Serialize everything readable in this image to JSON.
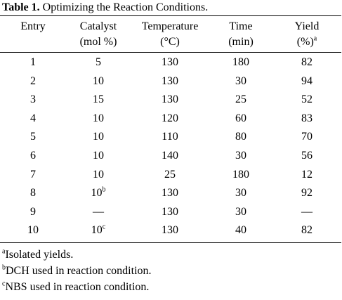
{
  "caption": {
    "label": "Table 1.",
    "text": " Optimizing the Reaction Conditions."
  },
  "headers": [
    {
      "line1": "Entry",
      "line2": "",
      "sup": ""
    },
    {
      "line1": "Catalyst",
      "line2": "(mol %)",
      "sup": ""
    },
    {
      "line1": "Temperature",
      "line2": "(°C)",
      "sup": ""
    },
    {
      "line1": "Time",
      "line2": "(min)",
      "sup": ""
    },
    {
      "line1": "Yield",
      "line2": "(%)",
      "sup": "a"
    }
  ],
  "rows": [
    [
      {
        "v": "1"
      },
      {
        "v": "5"
      },
      {
        "v": "130"
      },
      {
        "v": "180"
      },
      {
        "v": "82"
      }
    ],
    [
      {
        "v": "2"
      },
      {
        "v": "10"
      },
      {
        "v": "130"
      },
      {
        "v": "30"
      },
      {
        "v": "94"
      }
    ],
    [
      {
        "v": "3"
      },
      {
        "v": "15"
      },
      {
        "v": "130"
      },
      {
        "v": "25"
      },
      {
        "v": "52"
      }
    ],
    [
      {
        "v": "4"
      },
      {
        "v": "10"
      },
      {
        "v": "120"
      },
      {
        "v": "60"
      },
      {
        "v": "83"
      }
    ],
    [
      {
        "v": "5"
      },
      {
        "v": "10"
      },
      {
        "v": "110"
      },
      {
        "v": "80"
      },
      {
        "v": "70"
      }
    ],
    [
      {
        "v": "6"
      },
      {
        "v": "10"
      },
      {
        "v": "140"
      },
      {
        "v": "30"
      },
      {
        "v": "56"
      }
    ],
    [
      {
        "v": "7"
      },
      {
        "v": "10"
      },
      {
        "v": "25"
      },
      {
        "v": "180"
      },
      {
        "v": "12"
      }
    ],
    [
      {
        "v": "8"
      },
      {
        "v": "10",
        "sup": "b"
      },
      {
        "v": "130"
      },
      {
        "v": "30"
      },
      {
        "v": "92"
      }
    ],
    [
      {
        "v": "9"
      },
      {
        "v": "—"
      },
      {
        "v": "130"
      },
      {
        "v": "30"
      },
      {
        "v": "—"
      }
    ],
    [
      {
        "v": "10"
      },
      {
        "v": "10",
        "sup": "c"
      },
      {
        "v": "130"
      },
      {
        "v": "40"
      },
      {
        "v": "82"
      }
    ]
  ],
  "footnotes": [
    {
      "mark": "a",
      "text": "Isolated yields."
    },
    {
      "mark": "b",
      "text": "DCH used in reaction condition."
    },
    {
      "mark": "c",
      "text": "NBS used in reaction condition."
    }
  ]
}
